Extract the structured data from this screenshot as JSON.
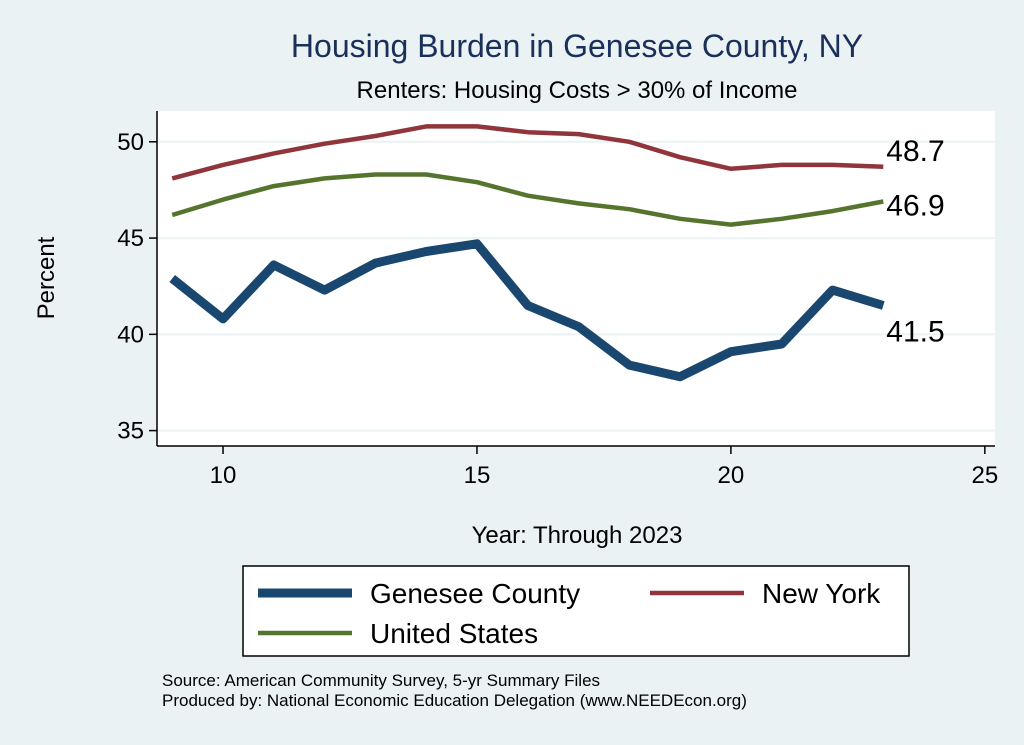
{
  "chart_data": {
    "type": "line",
    "title": "Housing Burden in Genesee County, NY",
    "subtitle": "Renters: Housing Costs > 30% of Income",
    "xlabel": "Year: Through 2023",
    "ylabel": "Percent",
    "xlim": [
      8.7,
      25.2
    ],
    "ylim": [
      34.2,
      51.6
    ],
    "xticks": [
      10,
      15,
      20,
      25
    ],
    "yticks": [
      35,
      40,
      45,
      50
    ],
    "grid": true,
    "legend_position": "bottom",
    "x": [
      9,
      10,
      11,
      12,
      13,
      14,
      15,
      16,
      17,
      18,
      19,
      20,
      21,
      22,
      23
    ],
    "series": [
      {
        "name": "Genesee County",
        "color": "#1a476f",
        "values": [
          42.9,
          40.8,
          43.6,
          42.3,
          43.7,
          44.3,
          44.7,
          41.5,
          40.4,
          38.4,
          37.8,
          39.1,
          39.5,
          42.3,
          41.5
        ],
        "end_label": "41.5"
      },
      {
        "name": "New York",
        "color": "#90353b",
        "values": [
          48.1,
          48.8,
          49.4,
          49.9,
          50.3,
          50.8,
          50.8,
          50.5,
          50.4,
          50.0,
          49.2,
          48.6,
          48.8,
          48.8,
          48.7
        ],
        "end_label": "48.7"
      },
      {
        "name": "United States",
        "color": "#55752f",
        "values": [
          46.2,
          47.0,
          47.7,
          48.1,
          48.3,
          48.3,
          47.9,
          47.2,
          46.8,
          46.5,
          46.0,
          45.7,
          46.0,
          46.4,
          46.9
        ],
        "end_label": "46.9"
      }
    ],
    "notes": [
      "Source: American Community Survey, 5-yr Summary Files",
      "Produced by: National Economic Education Delegation (www.NEEDEcon.org)"
    ]
  }
}
